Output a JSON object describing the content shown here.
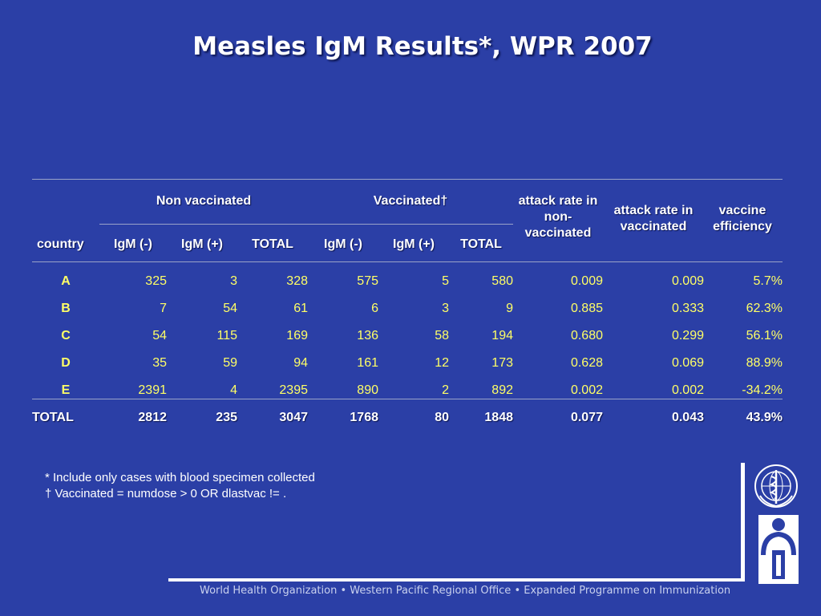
{
  "title": "Measles IgM Results*, WPR 2007",
  "table": {
    "group_headers": {
      "non_vaccinated": "Non vaccinated",
      "vaccinated": "Vaccinated†",
      "attack_rate_non_vaccinated": "attack rate in non-vaccinated",
      "attack_rate_vaccinated": "attack rate in vaccinated",
      "vaccine_efficiency": "vaccine efficiency"
    },
    "columns": [
      "country",
      "IgM (-)",
      "IgM (+)",
      "TOTAL",
      "IgM (-)",
      "IgM (+)",
      "TOTAL"
    ],
    "rows": [
      {
        "country": "A",
        "nv_neg": "325",
        "nv_pos": "3",
        "nv_total": "328",
        "v_neg": "575",
        "v_pos": "5",
        "v_total": "580",
        "ar_nv": "0.009",
        "ar_v": "0.009",
        "ve": "5.7%"
      },
      {
        "country": "B",
        "nv_neg": "7",
        "nv_pos": "54",
        "nv_total": "61",
        "v_neg": "6",
        "v_pos": "3",
        "v_total": "9",
        "ar_nv": "0.885",
        "ar_v": "0.333",
        "ve": "62.3%"
      },
      {
        "country": "C",
        "nv_neg": "54",
        "nv_pos": "115",
        "nv_total": "169",
        "v_neg": "136",
        "v_pos": "58",
        "v_total": "194",
        "ar_nv": "0.680",
        "ar_v": "0.299",
        "ve": "56.1%"
      },
      {
        "country": "D",
        "nv_neg": "35",
        "nv_pos": "59",
        "nv_total": "94",
        "v_neg": "161",
        "v_pos": "12",
        "v_total": "173",
        "ar_nv": "0.628",
        "ar_v": "0.069",
        "ve": "88.9%"
      },
      {
        "country": "E",
        "nv_neg": "2391",
        "nv_pos": "4",
        "nv_total": "2395",
        "v_neg": "890",
        "v_pos": "2",
        "v_total": "892",
        "ar_nv": "0.002",
        "ar_v": "0.002",
        "ve": "-34.2%"
      }
    ],
    "total": {
      "country": "TOTAL",
      "nv_neg": "2812",
      "nv_pos": "235",
      "nv_total": "3047",
      "v_neg": "1768",
      "v_pos": "80",
      "v_total": "1848",
      "ar_nv": "0.077",
      "ar_v": "0.043",
      "ve": "43.9%"
    }
  },
  "footnotes": [
    "*  Include only cases with blood specimen collected",
    "†  Vaccinated = numdose > 0  OR dlastvac != ."
  ],
  "footer": "World Health Organization • Western Pacific Regional Office • Expanded Programme on Immunization",
  "logos": [
    "who-emblem-icon",
    "child-immunization-logo-icon"
  ],
  "colors": {
    "background": "#2b3fa6",
    "value_text": "#ffff66",
    "header_text": "#ffffff"
  }
}
